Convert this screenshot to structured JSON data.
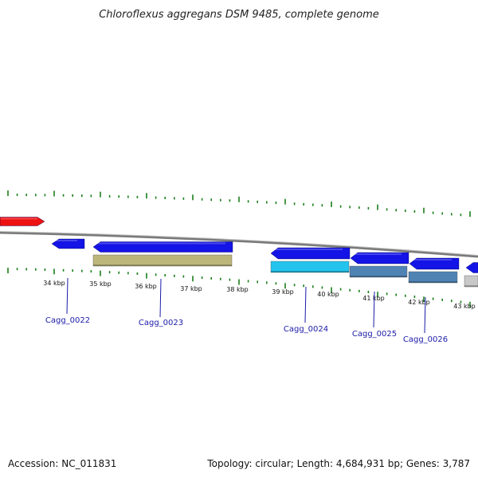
{
  "title": "Chloroflexus aggregans DSM 9485, complete genome",
  "footer": {
    "accession": "Accession: NC_011831",
    "summary": "Topology: circular; Length: 4,684,931 bp; Genes: 3,787"
  },
  "colors": {
    "backbone": "#7a7a7a",
    "tick": "#1a7f1a",
    "gene_blue": "#1414e6",
    "gene_red": "#ee1111",
    "gene_gray": "#c8c8c8",
    "rna_olive": "#bdb67a",
    "rna_cyan": "#22c4ee",
    "rna_steel": "#4f83b4",
    "label": "#1a1aa8"
  },
  "scale_labels": [
    "34 kbp",
    "35 kbp",
    "36 kbp",
    "37 kbp",
    "38 kbp",
    "39 kbp",
    "40 kbp",
    "41 kbp",
    "42 kbp",
    "43 kbp"
  ],
  "genes": [
    {
      "name": "Cagg_0022"
    },
    {
      "name": "Cagg_0023"
    },
    {
      "name": "Cagg_0024"
    },
    {
      "name": "Cagg_0025"
    },
    {
      "name": "Cagg_0026"
    }
  ]
}
